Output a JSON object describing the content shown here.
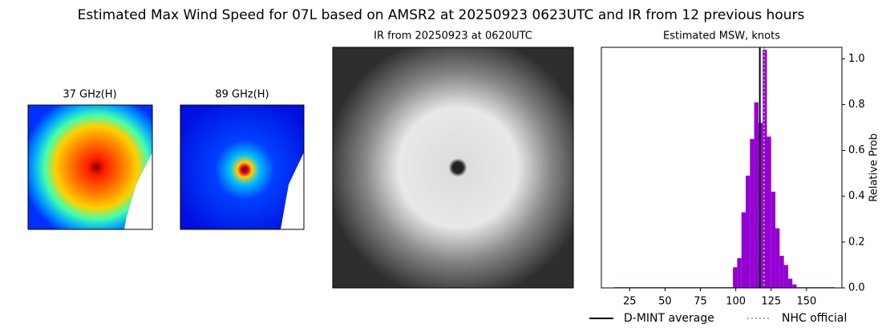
{
  "chart_data": {
    "type": "histogram",
    "title": "Estimated Max Wind Speed for 07L based on AMSR2 at 20250923 0623UTC and IR from 12 previous hours",
    "panel_titles": [
      "37 GHz(H)",
      "89 GHz(H)",
      "IR from 20250923 at 0620UTC"
    ],
    "subtitle": "Estimated MSW, knots",
    "ylabel": "Relative Prob",
    "bins": [
      14,
      17,
      20,
      23,
      26,
      29,
      32,
      35,
      38,
      41,
      44,
      47,
      50,
      53,
      56,
      59,
      62,
      65,
      68,
      71,
      74,
      77,
      80,
      83,
      86,
      89,
      92,
      95,
      98,
      101,
      104,
      107,
      110,
      113,
      116,
      119,
      122,
      125,
      128,
      131,
      134,
      137,
      140,
      143,
      146,
      149,
      152,
      155,
      158,
      161,
      164,
      167,
      170
    ],
    "values": [
      0.003,
      0.003,
      0.003,
      0.003,
      0.003,
      0.003,
      0.003,
      0.003,
      0.003,
      0.003,
      0.003,
      0.003,
      0.003,
      0.003,
      0.003,
      0.003,
      0.003,
      0.003,
      0.003,
      0.003,
      0.003,
      0.003,
      0.003,
      0.003,
      0.003,
      0.003,
      0.003,
      0.003,
      0.09,
      0.13,
      0.33,
      0.49,
      0.65,
      0.81,
      0.72,
      1.04,
      0.66,
      0.42,
      0.26,
      0.14,
      0.1,
      0.04,
      0.015,
      0.003,
      0.003,
      0.003,
      0.003,
      0.003,
      0.003,
      0.003,
      0.003,
      0.003
    ],
    "color": "#9400d3",
    "lines": [
      {
        "name": "D-MINT average",
        "value": 117,
        "color": "#000000",
        "style": "solid"
      },
      {
        "name": "NHC official",
        "value": 120,
        "color": "#aaaaaa",
        "style": "dotted"
      }
    ],
    "xlim": [
      5,
      175
    ],
    "xticks": [
      25,
      50,
      75,
      100,
      125,
      150
    ],
    "ylim": [
      0,
      1.05
    ],
    "yticks": [
      {
        "value": 0,
        "label": "0.0"
      },
      0.2,
      0.4,
      0.6,
      0.8,
      {
        "value": 1,
        "label": "1.0"
      }
    ],
    "yaxis_side": "right"
  }
}
